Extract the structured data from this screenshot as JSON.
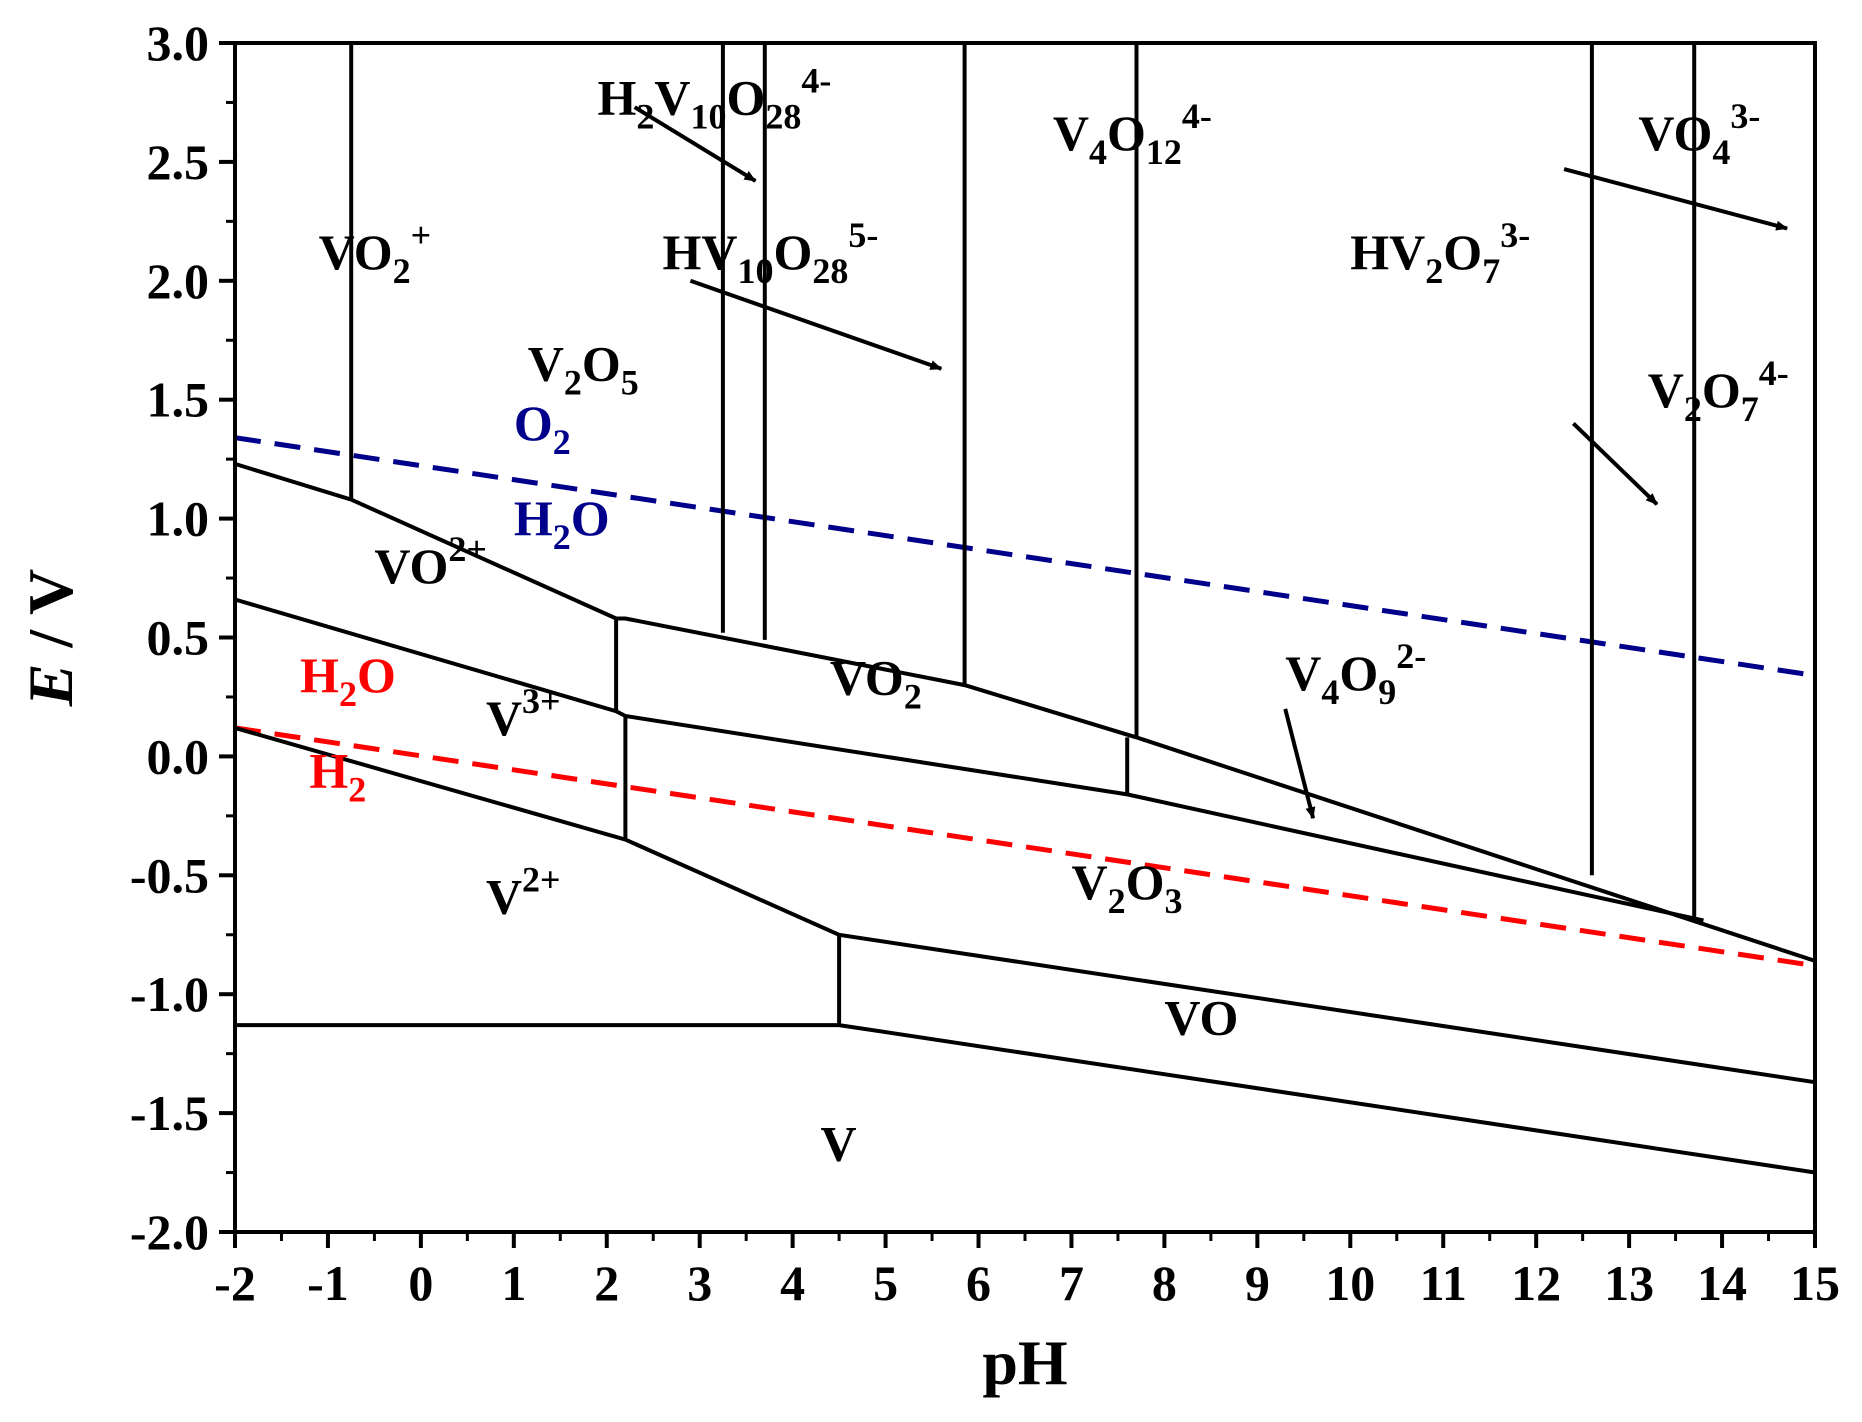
{
  "chart_data": {
    "type": "line",
    "title": "",
    "xlabel": "pH",
    "ylabel_italic": "E",
    "ylabel_unit": " / V",
    "xlim": [
      -2,
      15
    ],
    "ylim": [
      -2.0,
      3.0
    ],
    "x_ticks": [
      "-2",
      "-1",
      "0",
      "1",
      "2",
      "3",
      "4",
      "5",
      "6",
      "7",
      "8",
      "9",
      "10",
      "11",
      "12",
      "13",
      "14",
      "15"
    ],
    "y_ticks": [
      "3.0",
      "2.5",
      "2.0",
      "1.5",
      "1.0",
      "0.5",
      "0.0",
      "-0.5",
      "-1.0",
      "-1.5",
      "-2.0"
    ],
    "colors": {
      "boundary": "#000000",
      "o2_line": "#00008b",
      "h2_line": "#ff0000"
    },
    "water_lines": [
      {
        "name": "O2/H2O",
        "color": "#00008b",
        "style": "dashed",
        "points": [
          [
            -2,
            1.34
          ],
          [
            15,
            0.34
          ]
        ]
      },
      {
        "name": "H2O/H2",
        "color": "#ff0000",
        "style": "dashed",
        "points": [
          [
            -2,
            0.12
          ],
          [
            15,
            -0.88
          ]
        ]
      }
    ],
    "boundaries": [
      [
        [
          -2,
          1.23
        ],
        [
          -0.75,
          1.08
        ],
        [
          2.1,
          0.58
        ],
        [
          2.2,
          0.58
        ],
        [
          5.85,
          0.3
        ],
        [
          7.7,
          0.08
        ],
        [
          15,
          -0.86
        ]
      ],
      [
        [
          -2,
          0.66
        ],
        [
          2.1,
          0.19
        ],
        [
          2.2,
          0.17
        ],
        [
          7.6,
          -0.16
        ],
        [
          13.8,
          -0.69
        ]
      ],
      [
        [
          -2,
          0.12
        ],
        [
          2.2,
          -0.35
        ],
        [
          4.5,
          -0.75
        ],
        [
          15,
          -1.37
        ]
      ],
      [
        [
          -2,
          -1.13
        ],
        [
          4.5,
          -1.13
        ],
        [
          15,
          -1.75
        ]
      ],
      [
        [
          -0.75,
          3.0
        ],
        [
          -0.75,
          1.08
        ]
      ],
      [
        [
          3.25,
          3.0
        ],
        [
          3.25,
          0.52
        ]
      ],
      [
        [
          3.7,
          3.0
        ],
        [
          3.7,
          0.49
        ]
      ],
      [
        [
          5.85,
          3.0
        ],
        [
          5.85,
          0.3
        ]
      ],
      [
        [
          7.7,
          3.0
        ],
        [
          7.7,
          0.08
        ]
      ],
      [
        [
          2.1,
          0.58
        ],
        [
          2.1,
          0.19
        ]
      ],
      [
        [
          2.2,
          0.17
        ],
        [
          2.2,
          -0.35
        ]
      ],
      [
        [
          7.6,
          0.08
        ],
        [
          7.6,
          -0.16
        ]
      ],
      [
        [
          4.5,
          -0.75
        ],
        [
          4.5,
          -1.13
        ]
      ],
      [
        [
          12.6,
          3.0
        ],
        [
          12.6,
          -0.5
        ]
      ],
      [
        [
          13.7,
          3.0
        ],
        [
          13.7,
          -0.68
        ]
      ]
    ],
    "arrows": [
      [
        [
          2.3,
          2.73
        ],
        [
          3.6,
          2.42
        ]
      ],
      [
        [
          2.9,
          2.0
        ],
        [
          5.6,
          1.63
        ]
      ],
      [
        [
          9.3,
          0.2
        ],
        [
          9.6,
          -0.26
        ]
      ],
      [
        [
          12.4,
          1.4
        ],
        [
          13.3,
          1.06
        ]
      ],
      [
        [
          12.3,
          2.47
        ],
        [
          14.7,
          2.22
        ]
      ]
    ],
    "region_labels": [
      {
        "id": "vo2plus",
        "parts": [
          [
            "VO",
            "n"
          ],
          [
            "2",
            "sub"
          ],
          [
            "+",
            "sup"
          ]
        ],
        "color": "#000000",
        "at": [
          -1.1,
          2.05
        ]
      },
      {
        "id": "h2v10o28",
        "parts": [
          [
            "H",
            "n"
          ],
          [
            "2",
            "sub"
          ],
          [
            "V",
            "n"
          ],
          [
            "10",
            "sub"
          ],
          [
            "O",
            "n"
          ],
          [
            "28",
            "sub"
          ],
          [
            "4-",
            "sup"
          ]
        ],
        "color": "#000000",
        "at": [
          1.9,
          2.7
        ]
      },
      {
        "id": "hv10o28",
        "parts": [
          [
            "HV",
            "n"
          ],
          [
            "10",
            "sub"
          ],
          [
            "O",
            "n"
          ],
          [
            "28",
            "sub"
          ],
          [
            "5-",
            "sup"
          ]
        ],
        "color": "#000000",
        "at": [
          2.6,
          2.05
        ]
      },
      {
        "id": "v2o5",
        "parts": [
          [
            "V",
            "n"
          ],
          [
            "2",
            "sub"
          ],
          [
            "O",
            "n"
          ],
          [
            "5",
            "sub"
          ]
        ],
        "color": "#000000",
        "at": [
          1.15,
          1.58
        ]
      },
      {
        "id": "v4o12",
        "parts": [
          [
            "V",
            "n"
          ],
          [
            "4",
            "sub"
          ],
          [
            "O",
            "n"
          ],
          [
            "12",
            "sub"
          ],
          [
            "4-",
            "sup"
          ]
        ],
        "color": "#000000",
        "at": [
          6.8,
          2.55
        ]
      },
      {
        "id": "hv2o7",
        "parts": [
          [
            "HV",
            "n"
          ],
          [
            "2",
            "sub"
          ],
          [
            "O",
            "n"
          ],
          [
            "7",
            "sub"
          ],
          [
            "3-",
            "sup"
          ]
        ],
        "color": "#000000",
        "at": [
          10.0,
          2.05
        ]
      },
      {
        "id": "vo4",
        "parts": [
          [
            "VO",
            "n"
          ],
          [
            "4",
            "sub"
          ],
          [
            "3-",
            "sup"
          ]
        ],
        "color": "#000000",
        "at": [
          13.1,
          2.55
        ]
      },
      {
        "id": "v2o7",
        "parts": [
          [
            "V",
            "n"
          ],
          [
            "2",
            "sub"
          ],
          [
            "O",
            "n"
          ],
          [
            "7",
            "sub"
          ],
          [
            "4-",
            "sup"
          ]
        ],
        "color": "#000000",
        "at": [
          13.2,
          1.47
        ]
      },
      {
        "id": "o2",
        "parts": [
          [
            "O",
            "n"
          ],
          [
            "2",
            "sub"
          ]
        ],
        "color": "#00008b",
        "at": [
          1.0,
          1.33
        ]
      },
      {
        "id": "h2o-blue",
        "parts": [
          [
            "H",
            "n"
          ],
          [
            "2",
            "sub"
          ],
          [
            "O",
            "n"
          ]
        ],
        "color": "#00008b",
        "at": [
          1.0,
          0.93
        ]
      },
      {
        "id": "vo2plus2",
        "parts": [
          [
            "VO",
            "n"
          ],
          [
            "2+",
            "sup"
          ]
        ],
        "color": "#000000",
        "at": [
          -0.5,
          0.73
        ]
      },
      {
        "id": "vo2",
        "parts": [
          [
            "VO",
            "n"
          ],
          [
            "2",
            "sub"
          ]
        ],
        "color": "#000000",
        "at": [
          4.4,
          0.26
        ]
      },
      {
        "id": "v4o9",
        "parts": [
          [
            "V",
            "n"
          ],
          [
            "4",
            "sub"
          ],
          [
            "O",
            "n"
          ],
          [
            "9",
            "sub"
          ],
          [
            "2-",
            "sup"
          ]
        ],
        "color": "#000000",
        "at": [
          9.3,
          0.28
        ]
      },
      {
        "id": "h2o-red",
        "parts": [
          [
            "H",
            "n"
          ],
          [
            "2",
            "sub"
          ],
          [
            "O",
            "n"
          ]
        ],
        "color": "#ff0000",
        "at": [
          -1.3,
          0.27
        ]
      },
      {
        "id": "v3plus",
        "parts": [
          [
            "V",
            "n"
          ],
          [
            "3+",
            "sup"
          ]
        ],
        "color": "#000000",
        "at": [
          0.7,
          0.09
        ]
      },
      {
        "id": "h2",
        "parts": [
          [
            "H",
            "n"
          ],
          [
            "2",
            "sub"
          ]
        ],
        "color": "#ff0000",
        "at": [
          -1.2,
          -0.13
        ]
      },
      {
        "id": "v2o3",
        "parts": [
          [
            "V",
            "n"
          ],
          [
            "2",
            "sub"
          ],
          [
            "O",
            "n"
          ],
          [
            "3",
            "sub"
          ]
        ],
        "color": "#000000",
        "at": [
          7.0,
          -0.6
        ]
      },
      {
        "id": "v2plus",
        "parts": [
          [
            "V",
            "n"
          ],
          [
            "2+",
            "sup"
          ]
        ],
        "color": "#000000",
        "at": [
          0.7,
          -0.66
        ]
      },
      {
        "id": "vo",
        "parts": [
          [
            "VO",
            "n"
          ]
        ],
        "color": "#000000",
        "at": [
          8.0,
          -1.17
        ]
      },
      {
        "id": "v",
        "parts": [
          [
            "V",
            "n"
          ]
        ],
        "color": "#000000",
        "at": [
          4.3,
          -1.7
        ]
      }
    ]
  }
}
